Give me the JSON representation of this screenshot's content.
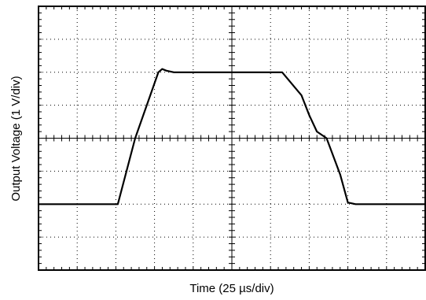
{
  "chart_data": {
    "type": "line",
    "title": "",
    "xlabel": "Time (25 µs/div)",
    "ylabel": "Output Voltage (1 V/div)",
    "grid": true,
    "x_divisions": 10,
    "y_divisions": 8,
    "minor_ticks_per_division": 5,
    "xlim": [
      0,
      10
    ],
    "ylim": [
      0,
      8
    ],
    "series": [
      {
        "x": [
          0,
          2.05,
          2.5,
          3.1,
          3.2,
          3.3,
          3.5,
          4.0,
          5.0,
          6.0,
          6.3,
          6.8,
          7.0,
          7.2,
          7.45,
          7.8,
          8.0,
          8.2,
          8.6,
          9.0,
          10
        ],
        "y": [
          2.0,
          2.0,
          4.0,
          6.0,
          6.1,
          6.05,
          6.0,
          6.0,
          6.0,
          6.0,
          6.0,
          5.3,
          4.7,
          4.2,
          4.0,
          2.9,
          2.05,
          2.0,
          2.0,
          2.0,
          2.0
        ],
        "color": "#000000"
      }
    ]
  }
}
